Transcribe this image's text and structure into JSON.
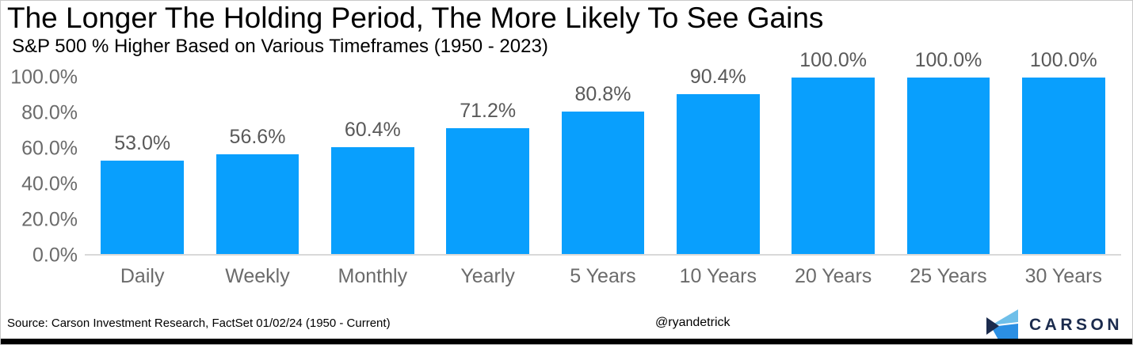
{
  "header": {
    "title": "The Longer The Holding Period, The More Likely To See Gains",
    "subtitle": "S&P 500 % Higher Based on Various Timeframes (1950 - 2023)"
  },
  "chart_data": {
    "type": "bar",
    "title": "The Longer The Holding Period, The More Likely To See Gains",
    "subtitle": "S&P 500 % Higher Based on Various Timeframes (1950 - 2023)",
    "categories": [
      "Daily",
      "Weekly",
      "Monthly",
      "Yearly",
      "5 Years",
      "10 Years",
      "20 Years",
      "25 Years",
      "30 Years"
    ],
    "values": [
      53.0,
      56.6,
      60.4,
      71.2,
      80.8,
      90.4,
      100.0,
      100.0,
      100.0
    ],
    "value_labels": [
      "53.0%",
      "56.6%",
      "60.4%",
      "71.2%",
      "80.8%",
      "90.4%",
      "100.0%",
      "100.0%",
      "100.0%"
    ],
    "yticks": [
      "0.0%",
      "20.0%",
      "40.0%",
      "60.0%",
      "80.0%",
      "100.0%"
    ],
    "ylim": [
      0,
      100
    ],
    "xlabel": "",
    "ylabel": "",
    "grid": false,
    "legend": false,
    "bar_color": "#099FFD"
  },
  "colors": {
    "bar": "#099FFD",
    "value_label": "#595959",
    "axis_label": "#6B6B6B",
    "axis_line": "#D9D9D9",
    "brand_navy": "#1B2B4D",
    "logo_light_blue": "#6FBFE9",
    "logo_bright_blue": "#2B8FE3"
  },
  "footer": {
    "source": "Source: Carson Investment Research, FactSet 01/02/24 (1950 - Current)",
    "handle": "@ryandetrick",
    "brand_name": "CARSON"
  }
}
